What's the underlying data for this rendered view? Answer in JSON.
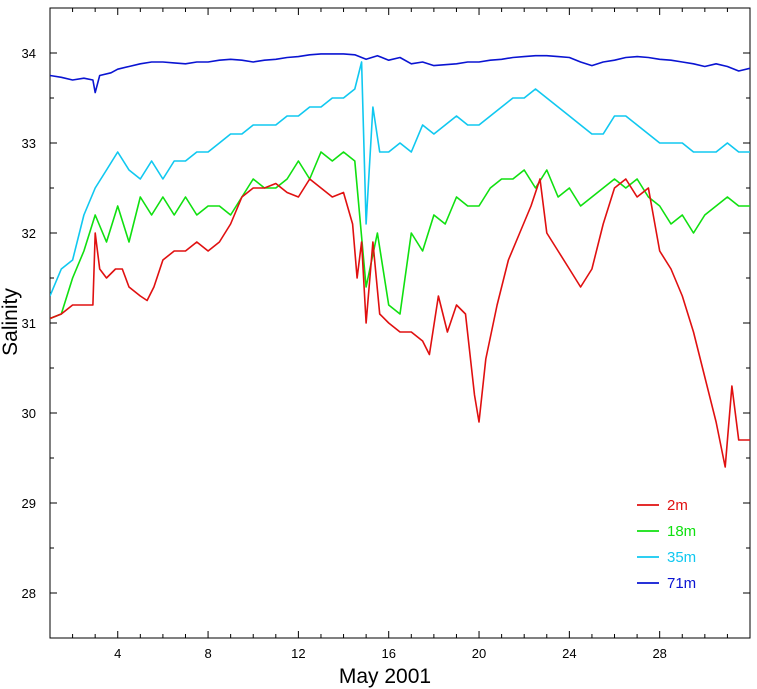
{
  "chart_data": {
    "type": "line",
    "xlabel": "May 2001",
    "ylabel": "Salinity",
    "xlim": [
      1,
      32
    ],
    "ylim": [
      27.5,
      34.5
    ],
    "x_ticks": [
      4,
      8,
      12,
      16,
      20,
      24,
      28
    ],
    "y_ticks": [
      28,
      29,
      30,
      31,
      32,
      33,
      34
    ],
    "legend_position": "bottom-right",
    "grid": false,
    "series": [
      {
        "name": "2m",
        "color": "#e01010",
        "points": [
          [
            1,
            31.05
          ],
          [
            1.5,
            31.1
          ],
          [
            2,
            31.2
          ],
          [
            2.6,
            31.2
          ],
          [
            2.9,
            31.2
          ],
          [
            3.0,
            32.0
          ],
          [
            3.2,
            31.6
          ],
          [
            3.5,
            31.5
          ],
          [
            3.9,
            31.6
          ],
          [
            4.2,
            31.6
          ],
          [
            4.5,
            31.4
          ],
          [
            5.0,
            31.3
          ],
          [
            5.3,
            31.25
          ],
          [
            5.6,
            31.4
          ],
          [
            6.0,
            31.7
          ],
          [
            6.5,
            31.8
          ],
          [
            7.0,
            31.8
          ],
          [
            7.5,
            31.9
          ],
          [
            8.0,
            31.8
          ],
          [
            8.5,
            31.9
          ],
          [
            9.0,
            32.1
          ],
          [
            9.5,
            32.4
          ],
          [
            10.0,
            32.5
          ],
          [
            10.5,
            32.5
          ],
          [
            11.0,
            32.55
          ],
          [
            11.5,
            32.45
          ],
          [
            12.0,
            32.4
          ],
          [
            12.5,
            32.6
          ],
          [
            13.0,
            32.5
          ],
          [
            13.5,
            32.4
          ],
          [
            14.0,
            32.45
          ],
          [
            14.4,
            32.1
          ],
          [
            14.6,
            31.5
          ],
          [
            14.8,
            31.9
          ],
          [
            15.0,
            31.0
          ],
          [
            15.3,
            31.9
          ],
          [
            15.6,
            31.1
          ],
          [
            16.0,
            31.0
          ],
          [
            16.5,
            30.9
          ],
          [
            17.0,
            30.9
          ],
          [
            17.5,
            30.8
          ],
          [
            17.8,
            30.65
          ],
          [
            18.2,
            31.3
          ],
          [
            18.6,
            30.9
          ],
          [
            19.0,
            31.2
          ],
          [
            19.4,
            31.1
          ],
          [
            19.8,
            30.2
          ],
          [
            20.0,
            29.9
          ],
          [
            20.3,
            30.6
          ],
          [
            20.8,
            31.2
          ],
          [
            21.3,
            31.7
          ],
          [
            21.8,
            32.0
          ],
          [
            22.3,
            32.3
          ],
          [
            22.7,
            32.6
          ],
          [
            23.0,
            32.0
          ],
          [
            23.5,
            31.8
          ],
          [
            24.0,
            31.6
          ],
          [
            24.5,
            31.4
          ],
          [
            25.0,
            31.6
          ],
          [
            25.5,
            32.1
          ],
          [
            26.0,
            32.5
          ],
          [
            26.5,
            32.6
          ],
          [
            27.0,
            32.4
          ],
          [
            27.5,
            32.5
          ],
          [
            28.0,
            31.8
          ],
          [
            28.5,
            31.6
          ],
          [
            29.0,
            31.3
          ],
          [
            29.5,
            30.9
          ],
          [
            30.0,
            30.4
          ],
          [
            30.5,
            29.9
          ],
          [
            30.9,
            29.4
          ],
          [
            31.2,
            30.3
          ],
          [
            31.5,
            29.7
          ],
          [
            32.0,
            29.7
          ]
        ]
      },
      {
        "name": "18m",
        "color": "#10e010",
        "points": [
          [
            1,
            31.05
          ],
          [
            1.5,
            31.1
          ],
          [
            2,
            31.5
          ],
          [
            2.5,
            31.8
          ],
          [
            3.0,
            32.2
          ],
          [
            3.5,
            31.9
          ],
          [
            4.0,
            32.3
          ],
          [
            4.5,
            31.9
          ],
          [
            5.0,
            32.4
          ],
          [
            5.5,
            32.2
          ],
          [
            6.0,
            32.4
          ],
          [
            6.5,
            32.2
          ],
          [
            7.0,
            32.4
          ],
          [
            7.5,
            32.2
          ],
          [
            8.0,
            32.3
          ],
          [
            8.5,
            32.3
          ],
          [
            9.0,
            32.2
          ],
          [
            9.5,
            32.4
          ],
          [
            10.0,
            32.6
          ],
          [
            10.5,
            32.5
          ],
          [
            11.0,
            32.5
          ],
          [
            11.5,
            32.6
          ],
          [
            12.0,
            32.8
          ],
          [
            12.5,
            32.6
          ],
          [
            13.0,
            32.9
          ],
          [
            13.5,
            32.8
          ],
          [
            14.0,
            32.9
          ],
          [
            14.5,
            32.8
          ],
          [
            15.0,
            31.4
          ],
          [
            15.5,
            32.0
          ],
          [
            16.0,
            31.2
          ],
          [
            16.5,
            31.1
          ],
          [
            17.0,
            32.0
          ],
          [
            17.5,
            31.8
          ],
          [
            18.0,
            32.2
          ],
          [
            18.5,
            32.1
          ],
          [
            19.0,
            32.4
          ],
          [
            19.5,
            32.3
          ],
          [
            20.0,
            32.3
          ],
          [
            20.5,
            32.5
          ],
          [
            21.0,
            32.6
          ],
          [
            21.5,
            32.6
          ],
          [
            22.0,
            32.7
          ],
          [
            22.5,
            32.5
          ],
          [
            23.0,
            32.7
          ],
          [
            23.5,
            32.4
          ],
          [
            24.0,
            32.5
          ],
          [
            24.5,
            32.3
          ],
          [
            25.0,
            32.4
          ],
          [
            25.5,
            32.5
          ],
          [
            26.0,
            32.6
          ],
          [
            26.5,
            32.5
          ],
          [
            27.0,
            32.6
          ],
          [
            27.5,
            32.4
          ],
          [
            28.0,
            32.3
          ],
          [
            28.5,
            32.1
          ],
          [
            29.0,
            32.2
          ],
          [
            29.5,
            32.0
          ],
          [
            30.0,
            32.2
          ],
          [
            30.5,
            32.3
          ],
          [
            31.0,
            32.4
          ],
          [
            31.5,
            32.3
          ],
          [
            32.0,
            32.3
          ]
        ]
      },
      {
        "name": "35m",
        "color": "#10c8f0",
        "points": [
          [
            1,
            31.3
          ],
          [
            1.5,
            31.6
          ],
          [
            2,
            31.7
          ],
          [
            2.5,
            32.2
          ],
          [
            3.0,
            32.5
          ],
          [
            3.5,
            32.7
          ],
          [
            4.0,
            32.9
          ],
          [
            4.5,
            32.7
          ],
          [
            5.0,
            32.6
          ],
          [
            5.5,
            32.8
          ],
          [
            6.0,
            32.6
          ],
          [
            6.5,
            32.8
          ],
          [
            7.0,
            32.8
          ],
          [
            7.5,
            32.9
          ],
          [
            8.0,
            32.9
          ],
          [
            8.5,
            33.0
          ],
          [
            9.0,
            33.1
          ],
          [
            9.5,
            33.1
          ],
          [
            10.0,
            33.2
          ],
          [
            10.5,
            33.2
          ],
          [
            11.0,
            33.2
          ],
          [
            11.5,
            33.3
          ],
          [
            12.0,
            33.3
          ],
          [
            12.5,
            33.4
          ],
          [
            13.0,
            33.4
          ],
          [
            13.5,
            33.5
          ],
          [
            14.0,
            33.5
          ],
          [
            14.5,
            33.6
          ],
          [
            14.8,
            33.9
          ],
          [
            15.0,
            32.1
          ],
          [
            15.3,
            33.4
          ],
          [
            15.6,
            32.9
          ],
          [
            16.0,
            32.9
          ],
          [
            16.5,
            33.0
          ],
          [
            17.0,
            32.9
          ],
          [
            17.5,
            33.2
          ],
          [
            18.0,
            33.1
          ],
          [
            18.5,
            33.2
          ],
          [
            19.0,
            33.3
          ],
          [
            19.5,
            33.2
          ],
          [
            20.0,
            33.2
          ],
          [
            20.5,
            33.3
          ],
          [
            21.0,
            33.4
          ],
          [
            21.5,
            33.5
          ],
          [
            22.0,
            33.5
          ],
          [
            22.5,
            33.6
          ],
          [
            23.0,
            33.5
          ],
          [
            23.5,
            33.4
          ],
          [
            24.0,
            33.3
          ],
          [
            24.5,
            33.2
          ],
          [
            25.0,
            33.1
          ],
          [
            25.5,
            33.1
          ],
          [
            26.0,
            33.3
          ],
          [
            26.5,
            33.3
          ],
          [
            27.0,
            33.2
          ],
          [
            27.5,
            33.1
          ],
          [
            28.0,
            33.0
          ],
          [
            28.5,
            33.0
          ],
          [
            29.0,
            33.0
          ],
          [
            29.5,
            32.9
          ],
          [
            30.0,
            32.9
          ],
          [
            30.5,
            32.9
          ],
          [
            31.0,
            33.0
          ],
          [
            31.5,
            32.9
          ],
          [
            32.0,
            32.9
          ]
        ]
      },
      {
        "name": "71m",
        "color": "#0a14d2",
        "points": [
          [
            1,
            33.75
          ],
          [
            1.5,
            33.73
          ],
          [
            2,
            33.7
          ],
          [
            2.5,
            33.72
          ],
          [
            2.9,
            33.7
          ],
          [
            3.0,
            33.56
          ],
          [
            3.2,
            33.75
          ],
          [
            3.7,
            33.78
          ],
          [
            4.0,
            33.82
          ],
          [
            4.5,
            33.85
          ],
          [
            5.0,
            33.88
          ],
          [
            5.5,
            33.9
          ],
          [
            6.0,
            33.9
          ],
          [
            6.5,
            33.89
          ],
          [
            7.0,
            33.88
          ],
          [
            7.5,
            33.9
          ],
          [
            8.0,
            33.9
          ],
          [
            8.5,
            33.92
          ],
          [
            9.0,
            33.93
          ],
          [
            9.5,
            33.92
          ],
          [
            10.0,
            33.9
          ],
          [
            10.5,
            33.92
          ],
          [
            11.0,
            33.93
          ],
          [
            11.5,
            33.95
          ],
          [
            12.0,
            33.96
          ],
          [
            12.5,
            33.98
          ],
          [
            13.0,
            33.99
          ],
          [
            13.5,
            33.99
          ],
          [
            14.0,
            33.99
          ],
          [
            14.5,
            33.98
          ],
          [
            15.0,
            33.93
          ],
          [
            15.5,
            33.97
          ],
          [
            16.0,
            33.92
          ],
          [
            16.5,
            33.95
          ],
          [
            17.0,
            33.88
          ],
          [
            17.5,
            33.9
          ],
          [
            18.0,
            33.86
          ],
          [
            18.5,
            33.87
          ],
          [
            19.0,
            33.88
          ],
          [
            19.5,
            33.9
          ],
          [
            20.0,
            33.9
          ],
          [
            20.5,
            33.92
          ],
          [
            21.0,
            33.93
          ],
          [
            21.5,
            33.95
          ],
          [
            22.0,
            33.96
          ],
          [
            22.5,
            33.97
          ],
          [
            23.0,
            33.97
          ],
          [
            23.5,
            33.96
          ],
          [
            24.0,
            33.95
          ],
          [
            24.5,
            33.9
          ],
          [
            25.0,
            33.86
          ],
          [
            25.5,
            33.9
          ],
          [
            26.0,
            33.92
          ],
          [
            26.5,
            33.95
          ],
          [
            27.0,
            33.96
          ],
          [
            27.5,
            33.95
          ],
          [
            28.0,
            33.93
          ],
          [
            28.5,
            33.92
          ],
          [
            29.0,
            33.9
          ],
          [
            29.5,
            33.88
          ],
          [
            30.0,
            33.85
          ],
          [
            30.5,
            33.88
          ],
          [
            31.0,
            33.85
          ],
          [
            31.5,
            33.8
          ],
          [
            32.0,
            33.83
          ]
        ]
      }
    ]
  }
}
